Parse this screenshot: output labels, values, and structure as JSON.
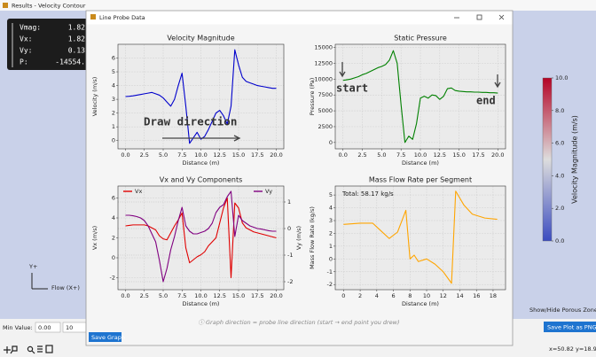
{
  "app": {
    "title": "Results - Velocity Contour",
    "probe": [
      {
        "label": "Vmag:",
        "value": "1.82"
      },
      {
        "label": "Vx:",
        "value": "1.82"
      },
      {
        "label": "Vy:",
        "value": "0.13"
      },
      {
        "label": "P:",
        "value": "-14554."
      }
    ],
    "colorbar": {
      "label": "Velocity Magnitude (m/s)",
      "lim": [
        0,
        10
      ],
      "ticks": [
        {
          "value": 10,
          "label": "10.0"
        },
        {
          "value": 8,
          "label": "8.0"
        },
        {
          "value": 6,
          "label": "6.0"
        },
        {
          "value": 4,
          "label": "4.0"
        },
        {
          "value": 2,
          "label": "2.0"
        },
        {
          "value": 0,
          "label": "0.0"
        }
      ]
    },
    "axis_y": "Y+",
    "axis_x": "Flow (X+)",
    "min_value_label": "Min Value:",
    "min_value": "0.00",
    "max_value": "10",
    "porous_button": "Show/Hide Porous Zones",
    "save_png_button": "Save Plot as PNG",
    "coords": "x=50.82 y=18.90"
  },
  "dialog": {
    "title": "Line Probe Data",
    "footer": "ⓘ Graph direction = probe line direction (start → end point you drew)",
    "save_button": "Save Graph"
  },
  "chart_data": [
    {
      "type": "line",
      "title": "Velocity Magnitude",
      "xlabel": "Distance (m)",
      "ylabel": "Velocity (m/s)",
      "grid": true,
      "annotations": [
        "Draw direction"
      ],
      "x": [
        0,
        0.5,
        1,
        1.5,
        2,
        2.5,
        3,
        3.5,
        4,
        4.5,
        5,
        5.5,
        6,
        6.5,
        7,
        7.5,
        8,
        8.5,
        9,
        9.5,
        10,
        10.5,
        11,
        11.5,
        12,
        12.5,
        13,
        13.5,
        14,
        14.5,
        15,
        15.5,
        16,
        16.5,
        17,
        17.5,
        18,
        18.5,
        19,
        19.5,
        20
      ],
      "series": [
        {
          "name": "Velocity Magnitude",
          "color": "#0000cc",
          "values": [
            3.2,
            3.22,
            3.25,
            3.3,
            3.35,
            3.4,
            3.45,
            3.5,
            3.4,
            3.3,
            3.1,
            2.8,
            2.5,
            3.0,
            4.0,
            4.9,
            2.5,
            -0.2,
            0.2,
            0.6,
            0.1,
            0.3,
            0.8,
            1.4,
            2.0,
            2.2,
            1.8,
            1.2,
            2.5,
            6.6,
            5.5,
            4.6,
            4.3,
            4.2,
            4.1,
            4.0,
            3.95,
            3.9,
            3.85,
            3.8,
            3.8
          ]
        }
      ],
      "xlim": [
        -1,
        21
      ],
      "ylim": [
        -0.6,
        7.0
      ],
      "xticks": [
        {
          "value": 0,
          "label": "0.0"
        },
        {
          "value": 2.5,
          "label": "2.5"
        },
        {
          "value": 5,
          "label": "5.0"
        },
        {
          "value": 7.5,
          "label": "7.5"
        },
        {
          "value": 10,
          "label": "10.0"
        },
        {
          "value": 12.5,
          "label": "12.5"
        },
        {
          "value": 15,
          "label": "15.0"
        },
        {
          "value": 17.5,
          "label": "17.5"
        },
        {
          "value": 20,
          "label": "20.0"
        }
      ],
      "yticks": [
        0,
        1,
        2,
        3,
        4,
        5,
        6
      ]
    },
    {
      "type": "line",
      "title": "Static Pressure",
      "xlabel": "Distance (m)",
      "ylabel": "Pressure (Pa)",
      "grid": true,
      "annotations": [
        "start",
        "end"
      ],
      "x": [
        0,
        0.5,
        1,
        1.5,
        2,
        2.5,
        3,
        3.5,
        4,
        4.5,
        5,
        5.5,
        6,
        6.5,
        7,
        7.5,
        8,
        8.5,
        9,
        9.5,
        10,
        10.5,
        11,
        11.5,
        12,
        12.5,
        13,
        13.5,
        14,
        14.5,
        15,
        15.5,
        16,
        16.5,
        17,
        17.5,
        18,
        18.5,
        19,
        19.5,
        20
      ],
      "series": [
        {
          "name": "Static Pressure",
          "color": "#008000",
          "values": [
            9800,
            9900,
            10000,
            10200,
            10400,
            10700,
            10900,
            11200,
            11500,
            11800,
            12000,
            12300,
            13000,
            14500,
            12500,
            6000,
            0,
            1000,
            500,
            3000,
            7000,
            7300,
            7000,
            7500,
            7400,
            6800,
            7300,
            8500,
            8600,
            8200,
            8100,
            8050,
            8000,
            8000,
            7950,
            7950,
            7900,
            7900,
            7850,
            7850,
            7800
          ]
        }
      ],
      "xlim": [
        -1,
        21
      ],
      "ylim": [
        -1000,
        15500
      ],
      "xticks": [
        {
          "value": 0,
          "label": "0.0"
        },
        {
          "value": 2.5,
          "label": "2.5"
        },
        {
          "value": 5,
          "label": "5.0"
        },
        {
          "value": 7.5,
          "label": "7.5"
        },
        {
          "value": 10,
          "label": "10.0"
        },
        {
          "value": 12.5,
          "label": "12.5"
        },
        {
          "value": 15,
          "label": "15.0"
        },
        {
          "value": 17.5,
          "label": "17.5"
        },
        {
          "value": 20,
          "label": "20.0"
        }
      ],
      "yticks": [
        0,
        2500,
        5000,
        7500,
        10000,
        12500,
        15000
      ]
    },
    {
      "type": "line",
      "title": "Vx and Vy Components",
      "xlabel": "Distance (m)",
      "ylabel": "Vx (m/s)",
      "y2label": "Vy (m/s)",
      "grid": true,
      "x": [
        0,
        0.5,
        1,
        1.5,
        2,
        2.5,
        3,
        3.5,
        4,
        4.5,
        5,
        5.5,
        6,
        6.5,
        7,
        7.5,
        8,
        8.5,
        9,
        9.5,
        10,
        10.5,
        11,
        11.5,
        12,
        12.5,
        13,
        13.5,
        14,
        14.5,
        15,
        15.5,
        16,
        16.5,
        17,
        17.5,
        18,
        18.5,
        19,
        19.5,
        20
      ],
      "series": [
        {
          "name": "Vx",
          "color": "#e00000",
          "values": [
            3.2,
            3.25,
            3.3,
            3.3,
            3.3,
            3.3,
            3.2,
            3.0,
            2.8,
            2.2,
            1.9,
            1.8,
            2.5,
            3.2,
            3.8,
            4.5,
            1.0,
            -0.5,
            -0.2,
            0.1,
            0.3,
            0.6,
            1.2,
            1.6,
            2.0,
            3.5,
            5.0,
            6.0,
            -2.0,
            5.5,
            5.0,
            3.5,
            3.0,
            2.8,
            2.6,
            2.5,
            2.4,
            2.3,
            2.2,
            2.1,
            2.0
          ]
        },
        {
          "name": "Vy",
          "color": "#800080",
          "axis": "y2",
          "values": [
            0.5,
            0.5,
            0.48,
            0.45,
            0.4,
            0.3,
            0.1,
            -0.2,
            -0.5,
            -1.2,
            -2.0,
            -1.5,
            -0.8,
            -0.3,
            0.3,
            0.8,
            0.1,
            -0.1,
            -0.2,
            -0.2,
            -0.15,
            -0.1,
            0,
            0.2,
            0.6,
            0.8,
            0.9,
            1.2,
            1.4,
            -0.3,
            0.5,
            0.3,
            0.2,
            0.1,
            0.05,
            0,
            -0.02,
            -0.05,
            -0.08,
            -0.1,
            -0.1
          ]
        }
      ],
      "xlim": [
        -1,
        21
      ],
      "ylim": [
        -3.2,
        7.2
      ],
      "y2lim": [
        -2.3,
        1.6
      ],
      "xticks": [
        {
          "value": 0,
          "label": "0.0"
        },
        {
          "value": 2.5,
          "label": "2.5"
        },
        {
          "value": 5,
          "label": "5.0"
        },
        {
          "value": 7.5,
          "label": "7.5"
        },
        {
          "value": 10,
          "label": "10.0"
        },
        {
          "value": 12.5,
          "label": "12.5"
        },
        {
          "value": 15,
          "label": "15.0"
        },
        {
          "value": 17.5,
          "label": "17.5"
        },
        {
          "value": 20,
          "label": "20.0"
        }
      ],
      "yticks": [
        -2,
        0,
        2,
        4,
        6
      ],
      "y2ticks": [
        -2,
        -1,
        0,
        1
      ]
    },
    {
      "type": "line",
      "title": "Mass Flow Rate per Segment",
      "xlabel": "Distance (m)",
      "ylabel": "Mass Flow Rate (kg/s)",
      "grid": true,
      "annotations": [
        "Total: 58.17 kg/s"
      ],
      "x": [
        0,
        2,
        3.5,
        4.5,
        5.5,
        6.5,
        7.5,
        8,
        8.5,
        9,
        10,
        11,
        12,
        13,
        13.5,
        14.5,
        15.5,
        17,
        18.5
      ],
      "series": [
        {
          "name": "Mass Flow Rate",
          "color": "#ffa500",
          "values": [
            2.7,
            2.8,
            2.8,
            2.2,
            1.6,
            2.1,
            3.8,
            0,
            0.3,
            -0.2,
            0,
            -0.4,
            -1.0,
            -1.9,
            5.3,
            4.2,
            3.5,
            3.2,
            3.1
          ]
        }
      ],
      "xlim": [
        -1,
        19.5
      ],
      "ylim": [
        -2.4,
        5.7
      ],
      "xticks": [
        0,
        2,
        4,
        6,
        8,
        10,
        12,
        14,
        16,
        18
      ],
      "yticks": [
        -2,
        -1,
        0,
        1,
        2,
        3,
        4,
        5
      ]
    }
  ]
}
